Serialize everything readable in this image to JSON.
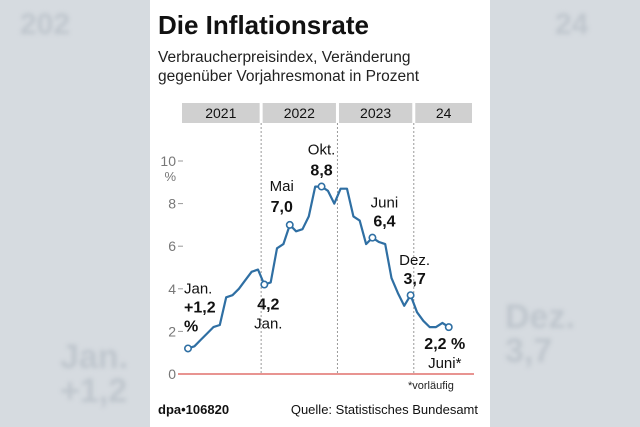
{
  "title": "Die Inflationsrate",
  "subtitle_lines": [
    "Verbraucherpreisindex, Veränderung",
    "gegenüber Vorjahresmonat in Prozent"
  ],
  "footnote": "*vorläufig",
  "source_id": "dpa•106820",
  "source": "Quelle: Statistisches Bundesamt",
  "colors": {
    "line": "#2f6fa3",
    "header_bar": "#d0d0d0",
    "zero_line": "#d9534f"
  },
  "chart_data": {
    "type": "line",
    "title": "Die Inflationsrate",
    "ylabel": "%",
    "ylim": [
      0,
      10
    ],
    "yticks": [
      0,
      2,
      4,
      6,
      8,
      10
    ],
    "year_labels": [
      "2021",
      "2022",
      "2023",
      "24"
    ],
    "x_start": "2021-01",
    "x": [
      "2021-01",
      "2021-02",
      "2021-03",
      "2021-04",
      "2021-05",
      "2021-06",
      "2021-07",
      "2021-08",
      "2021-09",
      "2021-10",
      "2021-11",
      "2021-12",
      "2022-01",
      "2022-02",
      "2022-03",
      "2022-04",
      "2022-05",
      "2022-06",
      "2022-07",
      "2022-08",
      "2022-09",
      "2022-10",
      "2022-11",
      "2022-12",
      "2023-01",
      "2023-02",
      "2023-03",
      "2023-04",
      "2023-05",
      "2023-06",
      "2023-07",
      "2023-08",
      "2023-09",
      "2023-10",
      "2023-11",
      "2023-12",
      "2024-01",
      "2024-02",
      "2024-03",
      "2024-04",
      "2024-05",
      "2024-06"
    ],
    "values": [
      1.2,
      1.3,
      1.6,
      1.9,
      2.2,
      2.3,
      3.6,
      3.7,
      4.0,
      4.4,
      4.8,
      4.9,
      4.2,
      4.3,
      5.9,
      6.1,
      7.0,
      6.7,
      6.8,
      7.4,
      8.8,
      8.8,
      8.6,
      8.0,
      8.7,
      8.7,
      7.4,
      7.2,
      6.1,
      6.4,
      6.2,
      6.1,
      4.5,
      3.8,
      3.2,
      3.7,
      2.9,
      2.5,
      2.2,
      2.2,
      2.4,
      2.2
    ],
    "annotations": [
      {
        "label_lines": [
          "Jan.",
          "+1,2",
          "%"
        ],
        "bold": [
          false,
          true,
          true
        ],
        "index": 0
      },
      {
        "label_lines": [
          "4,2",
          "Jan."
        ],
        "bold": [
          true,
          false
        ],
        "index": 12
      },
      {
        "label_lines": [
          "Mai",
          "7,0"
        ],
        "bold": [
          false,
          true
        ],
        "index": 16
      },
      {
        "label_lines": [
          "Okt.",
          "8,8"
        ],
        "bold": [
          false,
          true
        ],
        "index": 21
      },
      {
        "label_lines": [
          "Juni",
          "6,4"
        ],
        "bold": [
          false,
          true
        ],
        "index": 29
      },
      {
        "label_lines": [
          "Dez.",
          "3,7"
        ],
        "bold": [
          false,
          true
        ],
        "index": 35
      },
      {
        "label_lines": [
          "2,2 %",
          "Juni*"
        ],
        "bold": [
          true,
          false
        ],
        "index": 41
      }
    ]
  }
}
